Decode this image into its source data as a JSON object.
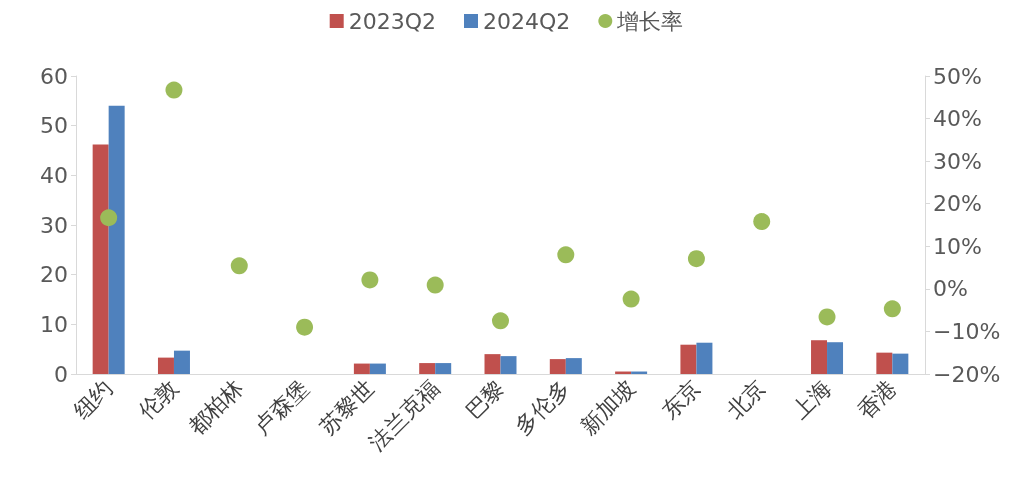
{
  "chart_data": {
    "type": "bar",
    "categories": [
      "纽约",
      "伦敦",
      "都柏林",
      "卢森堡",
      "苏黎世",
      "法兰克福",
      "巴黎",
      "多伦多",
      "新加坡",
      "东京",
      "北京",
      "上海",
      "香港"
    ],
    "series": [
      {
        "name": "2023Q2",
        "color": "#c0504d",
        "values": [
          46.2,
          3.3,
          0,
          0,
          2.1,
          2.2,
          4.0,
          3.0,
          0.5,
          5.9,
          0,
          6.8,
          4.3
        ]
      },
      {
        "name": "2024Q2",
        "color": "#4f81bd",
        "values": [
          54,
          4.7,
          0,
          0,
          2.1,
          2.2,
          3.6,
          3.2,
          0.5,
          6.3,
          0,
          6.4,
          4.1
        ]
      },
      {
        "name": "增长率",
        "type": "scatter",
        "axis": "y2",
        "color": "#9bbb59",
        "marker": "circle",
        "values": [
          16.7,
          46.7,
          5.4,
          -9.0,
          2.1,
          0.9,
          -7.5,
          8.0,
          -2.4,
          7.1,
          15.8,
          -6.6,
          -4.7
        ]
      }
    ],
    "ylim": [
      0,
      60
    ],
    "yticks": [
      0,
      10,
      20,
      30,
      40,
      50,
      60
    ],
    "y2lim": [
      -20,
      50
    ],
    "y2ticks": [
      {
        "value": -20,
        "label": "−20%"
      },
      {
        "value": -10,
        "label": "−10%"
      },
      {
        "value": 0,
        "label": "0%"
      },
      {
        "value": 10,
        "label": "10%"
      },
      {
        "value": 20,
        "label": "20%"
      },
      {
        "value": 30,
        "label": "30%"
      },
      {
        "value": 40,
        "label": "40%"
      },
      {
        "value": 50,
        "label": "50%"
      }
    ],
    "grid": false,
    "legend": "top"
  }
}
